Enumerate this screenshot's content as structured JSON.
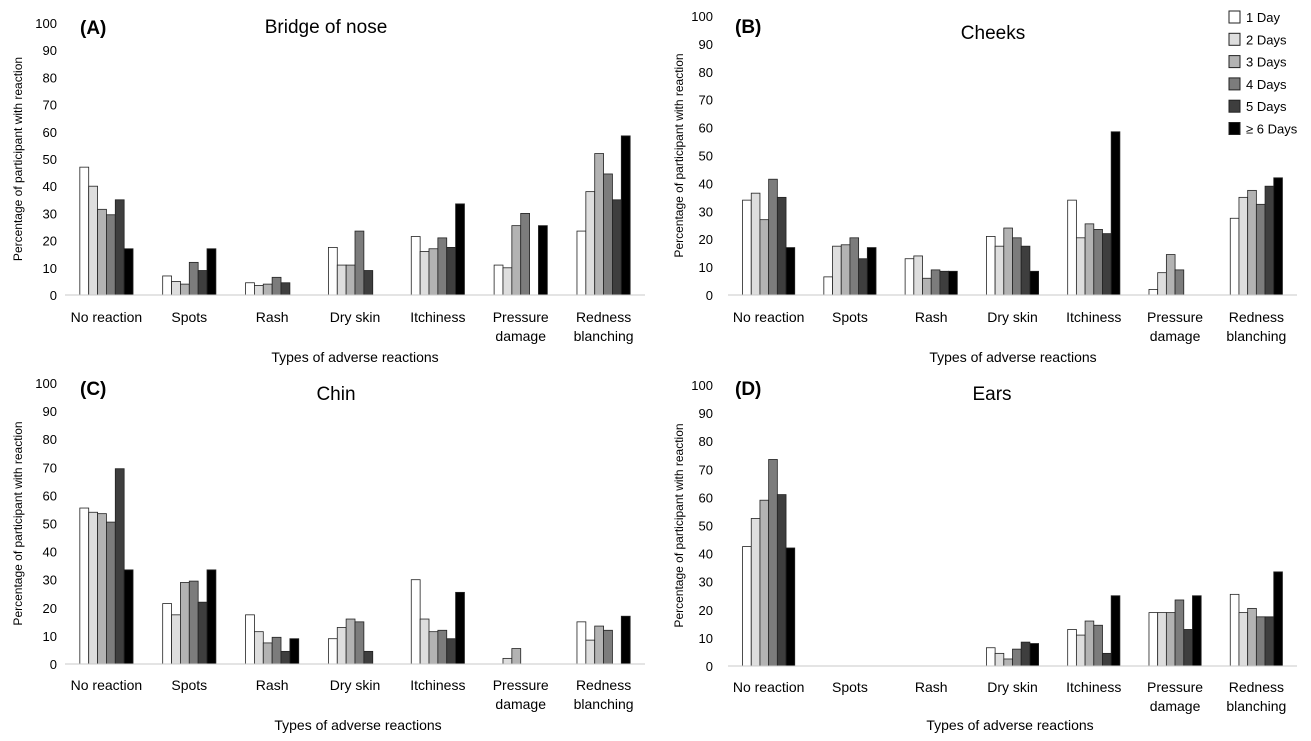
{
  "chart_data": [
    {
      "type": "bar",
      "panel_label": "(A)",
      "title": "Bridge of nose",
      "xlabel": "Types of  adverse reactions",
      "ylabel": "Percentage of participant with reaction",
      "ylim": [
        0,
        100
      ],
      "yticks": [
        "0",
        "10",
        "20",
        "30",
        "40",
        "50",
        "60",
        "70",
        "80",
        "90",
        "100"
      ],
      "categories": [
        [
          "No reaction"
        ],
        [
          "Spots"
        ],
        [
          "Rash"
        ],
        [
          "Dry skin"
        ],
        [
          "Itchiness"
        ],
        [
          "Pressure",
          "damage"
        ],
        [
          "Redness",
          "blanching"
        ]
      ],
      "series": [
        {
          "name": "1 Day",
          "values": [
            47,
            7,
            4.5,
            17.5,
            21.5,
            11,
            23.5
          ]
        },
        {
          "name": "2 Days",
          "values": [
            40,
            5,
            3.5,
            11,
            16,
            10,
            38
          ]
        },
        {
          "name": "3 Days",
          "values": [
            31.5,
            4,
            4,
            11,
            17,
            25.5,
            52
          ]
        },
        {
          "name": "4 Days",
          "values": [
            29.5,
            12,
            6.5,
            23.5,
            21,
            30,
            44.5
          ]
        },
        {
          "name": "5 Days",
          "values": [
            35,
            9,
            4.5,
            9,
            17.5,
            0,
            35
          ]
        },
        {
          "name": "≥ 6 Days",
          "values": [
            17,
            17,
            0,
            0,
            33.5,
            25.5,
            58.5
          ]
        }
      ]
    },
    {
      "type": "bar",
      "panel_label": "(B)",
      "title": "Cheeks",
      "xlabel": "Types of adverse reactions",
      "ylabel": "Percentage of participant with reaction",
      "ylim": [
        0,
        100
      ],
      "yticks": [
        "0",
        "10",
        "20",
        "30",
        "40",
        "50",
        "60",
        "70",
        "80",
        "90",
        "100"
      ],
      "categories": [
        [
          "No reaction"
        ],
        [
          "Spots"
        ],
        [
          "Rash"
        ],
        [
          "Dry skin"
        ],
        [
          "Itchiness"
        ],
        [
          "Pressure",
          "damage"
        ],
        [
          "Redness",
          "blanching"
        ]
      ],
      "legend_position": "top-right",
      "series": [
        {
          "name": "1 Day",
          "values": [
            34,
            6.5,
            13,
            21,
            34,
            2,
            27.5
          ]
        },
        {
          "name": "2 Days",
          "values": [
            36.5,
            17.5,
            14,
            17.5,
            20.5,
            8,
            35
          ]
        },
        {
          "name": "3 Days",
          "values": [
            27,
            18,
            6,
            24,
            25.5,
            14.5,
            37.5
          ]
        },
        {
          "name": "4 Days",
          "values": [
            41.5,
            20.5,
            9,
            20.5,
            23.5,
            9,
            32.5
          ]
        },
        {
          "name": "5 Days",
          "values": [
            35,
            13,
            8.5,
            17.5,
            22,
            0,
            39
          ]
        },
        {
          "name": "≥ 6 Days",
          "values": [
            17,
            17,
            8.5,
            8.5,
            58.5,
            0,
            42
          ]
        }
      ]
    },
    {
      "type": "bar",
      "panel_label": "(C)",
      "title": "Chin",
      "xlabel": "Types of adverse reactions",
      "ylabel": "Percentage of participant with  reaction",
      "ylim": [
        0,
        100
      ],
      "yticks": [
        "0",
        "10",
        "20",
        "30",
        "40",
        "50",
        "60",
        "70",
        "80",
        "90",
        "100"
      ],
      "categories": [
        [
          "No reaction"
        ],
        [
          "Spots"
        ],
        [
          "Rash"
        ],
        [
          "Dry skin"
        ],
        [
          "Itchiness"
        ],
        [
          "Pressure",
          "damage"
        ],
        [
          "Redness",
          "blanching"
        ]
      ],
      "series": [
        {
          "name": "1 Day",
          "values": [
            55.5,
            21.5,
            17.5,
            9,
            30,
            0,
            15
          ]
        },
        {
          "name": "2 Days",
          "values": [
            54,
            17.5,
            11.5,
            13,
            16,
            2,
            8.5
          ]
        },
        {
          "name": "3 Days",
          "values": [
            53.5,
            29,
            7.5,
            16,
            11.5,
            5.5,
            13.5
          ]
        },
        {
          "name": "4 Days",
          "values": [
            50.5,
            29.5,
            9.5,
            15,
            12,
            0,
            12
          ]
        },
        {
          "name": "5 Days",
          "values": [
            69.5,
            22,
            4.5,
            4.5,
            9,
            0,
            0
          ]
        },
        {
          "name": "≥ 6 Days",
          "values": [
            33.5,
            33.5,
            9,
            0,
            25.5,
            0,
            17
          ]
        }
      ]
    },
    {
      "type": "bar",
      "panel_label": "(D)",
      "title": "Ears",
      "xlabel": "Types of adverse reactions",
      "ylabel": "Percentage of participant with reaction",
      "ylim": [
        0,
        100
      ],
      "yticks": [
        "0",
        "10",
        "20",
        "30",
        "40",
        "50",
        "60",
        "70",
        "80",
        "90",
        "100"
      ],
      "categories": [
        [
          "No reaction"
        ],
        [
          "Spots"
        ],
        [
          "Rash"
        ],
        [
          "Dry skin"
        ],
        [
          "Itchiness"
        ],
        [
          "Pressure",
          "damage"
        ],
        [
          "Redness",
          "blanching"
        ]
      ],
      "series": [
        {
          "name": "1 Day",
          "values": [
            42.5,
            0,
            0,
            6.5,
            13,
            19,
            25.5
          ]
        },
        {
          "name": "2 Days",
          "values": [
            52.5,
            0,
            0,
            4.5,
            11,
            19,
            19
          ]
        },
        {
          "name": "3 Days",
          "values": [
            59,
            0,
            0,
            2.5,
            16,
            19,
            20.5
          ]
        },
        {
          "name": "4 Days",
          "values": [
            73.5,
            0,
            0,
            6,
            14.5,
            23.5,
            17.5
          ]
        },
        {
          "name": "5 Days",
          "values": [
            61,
            0,
            0,
            8.5,
            4.5,
            13,
            17.5
          ]
        },
        {
          "name": "≥ 6 Days",
          "values": [
            42,
            0,
            0,
            8,
            25,
            25,
            33.5
          ]
        }
      ]
    }
  ],
  "colors": {
    "series_fills": [
      "#ffffff",
      "#dedede",
      "#b3b3b3",
      "#7c7c7c",
      "#3e3e3e",
      "#000000"
    ],
    "stroke": "#222222",
    "axis": "#c8c8c8"
  }
}
